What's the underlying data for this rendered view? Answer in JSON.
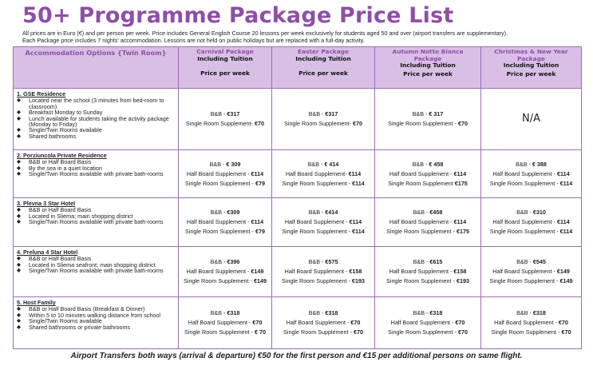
{
  "title": "50+ Programme Package Price List",
  "intro": [
    "All prices are in Euro (€) and per person per week. Price includes General English Course 20 lessons per week exclusively for students aged 50 and over (airport transfers are supplementary).",
    "Each Package price includes 7 nights' accommodation.  Lessons are not held on public holidays but are replaced with a full-day activity."
  ],
  "header": {
    "accommodation": "Accommodation Options  {Twin Room}",
    "packages": [
      {
        "name": "Carnival Package",
        "includes": "Including Tuition",
        "price_label": "Price per week"
      },
      {
        "name": "Easter Package",
        "includes": "Including Tuition",
        "price_label": "Price per week"
      },
      {
        "name": "Autumn Notte Bianca Package",
        "includes": "Including Tuition",
        "price_label": "Price per week"
      },
      {
        "name": "Christmas & New Year Package",
        "includes": "Including Tuition",
        "price_label": "Price per week"
      }
    ]
  },
  "rows": [
    {
      "name": "1. GSE Residence",
      "features": [
        "Located near the school (3 minutes from bed-room to classroom)",
        "Breakfast Monday to Sunday",
        "Lunch available for students taking the activity package (Monday to Friday)",
        "Single/Twin Rooms available",
        "Shared bathrooms"
      ],
      "prices": [
        [
          {
            "t": "B&B - ",
            "v": "€317"
          },
          {
            "t": "Single Room Supplement- ",
            "v": "€70"
          }
        ],
        [
          {
            "t": "B&B - ",
            "v": "€317"
          },
          {
            "t": "Single Room Supplement- ",
            "v": "€70"
          }
        ],
        [
          {
            "t": "B&B - ",
            "v": "€ 317"
          },
          {
            "t": "Single Room Supplement - ",
            "v": "€70"
          }
        ],
        [
          {
            "t": "N/A",
            "v": ""
          }
        ]
      ]
    },
    {
      "name": "2. Porziuncola Private Residence",
      "features": [
        "B&B or Half Board Basis",
        "By the sea in a quiet location",
        "Single/Twin Rooms available with private bath-rooms"
      ],
      "prices": [
        [
          {
            "t": "B&B - ",
            "v": "€ 309"
          },
          {
            "t": "Half Board Supplement - ",
            "v": "€114"
          },
          {
            "t": "Single Room Supplement - ",
            "v": "€79"
          }
        ],
        [
          {
            "t": "B&B - ",
            "v": "€ 414"
          },
          {
            "t": "Half Board Supplement- ",
            "v": "€114"
          },
          {
            "t": "Single Room Supplement - ",
            "v": "€114"
          }
        ],
        [
          {
            "t": "B&B - ",
            "v": "€ 458"
          },
          {
            "t": "Half Board Supplement - ",
            "v": "€114"
          },
          {
            "t": "Single Room Supplement ",
            "v": "€175"
          }
        ],
        [
          {
            "t": "B&B - ",
            "v": "€ 388"
          },
          {
            "t": "Half Board Supplement  - ",
            "v": "€114"
          },
          {
            "t": "Single Room Supplement - ",
            "v": "€114"
          }
        ]
      ]
    },
    {
      "name": "3. Plevna 3 Star Hotel",
      "features": [
        "B&B or Half Board Basis",
        "Located in Sliema; main shopping district",
        "Single/Twin Rooms available with private bath-rooms"
      ],
      "prices": [
        [
          {
            "t": "B&B - ",
            "v": "€309"
          },
          {
            "t": "Half Board Supplement - ",
            "v": "€114"
          },
          {
            "t": "Single Room Supplement - ",
            "v": "€79"
          }
        ],
        [
          {
            "t": "B&B - ",
            "v": "€414"
          },
          {
            "t": "Half Board Supplement - ",
            "v": "€114"
          },
          {
            "t": "Single Room Supplement - ",
            "v": "€114"
          }
        ],
        [
          {
            "t": "B&B - ",
            "v": "€458"
          },
          {
            "t": "Half Board Supplement - ",
            "v": "€114"
          },
          {
            "t": "Single Room Supplement - ",
            "v": "€175"
          }
        ],
        [
          {
            "t": "B&B - ",
            "v": "€310"
          },
          {
            "t": "Half Board Supplement - ",
            "v": "€114"
          },
          {
            "t": "Single Room Supplement  - ",
            "v": "€114"
          }
        ]
      ]
    },
    {
      "name": "4. Preluna  4 Star Hotel",
      "features": [
        "B&B or Half Board Basis",
        "Located in Sliema seafront; main shopping district",
        "Single/Twin Rooms available with private bath-rooms"
      ],
      "prices": [
        [
          {
            "t": "B&B - ",
            "v": "€396"
          },
          {
            "t": "Half Board Supplement - ",
            "v": "€149"
          },
          {
            "t": "Single Room Supplement - ",
            "v": "€149"
          }
        ],
        [
          {
            "t": "B&B - ",
            "v": "€575"
          },
          {
            "t": "Half Board Supplement - ",
            "v": "€158"
          },
          {
            "t": "Single Room Supplement - ",
            "v": "€193"
          }
        ],
        [
          {
            "t": "B&B - ",
            "v": "€615"
          },
          {
            "t": "Half Board Supplement - ",
            "v": "€158"
          },
          {
            "t": "Single Room Supplement - ",
            "v": "€193"
          }
        ],
        [
          {
            "t": "B&B - ",
            "v": "€545"
          },
          {
            "t": "Half Board Supplement - ",
            "v": "€149"
          },
          {
            "t": "Single Room Supplement - ",
            "v": "€149"
          }
        ]
      ]
    },
    {
      "name": "5. Host Family",
      "features": [
        "B&B or Half Board Basis (Breakfast & Dinner)",
        "Within 5 to 10 minutes walking distance from school",
        "Single/Twin Rooms available",
        "Shared bathrooms or private bathrooms"
      ],
      "prices": [
        [
          {
            "t": "B&B - ",
            "v": "€318"
          },
          {
            "t": "Half Board Supplement - ",
            "v": "€70"
          },
          {
            "t": "Single Room Supplement - ",
            "v": "€ 70"
          }
        ],
        [
          {
            "t": "B&B - ",
            "v": "€318"
          },
          {
            "t": "Half Board Supplement - ",
            "v": "€70"
          },
          {
            "t": "Single Room Supplement - ",
            "v": "€70"
          }
        ],
        [
          {
            "t": "B&B - ",
            "v": "€318"
          },
          {
            "t": "Half Board Supplement - ",
            "v": "€70"
          },
          {
            "t": "Single Room Supplement - ",
            "v": "€70"
          }
        ],
        [
          {
            "t": "B&B - ",
            "v": "€318"
          },
          {
            "t": "Half Board Supplement - ",
            "v": "€70"
          },
          {
            "t": "Single Room Supplement - ",
            "v": "€70"
          }
        ]
      ]
    }
  ],
  "footer": "Airport Transfers both ways (arrival & departure) €50 for the first person and €15 per additional persons on same flight.",
  "colors": {
    "accent": "#8e4fa6",
    "header_bg": "#d9bfe6",
    "border": "#9a6fb1"
  }
}
